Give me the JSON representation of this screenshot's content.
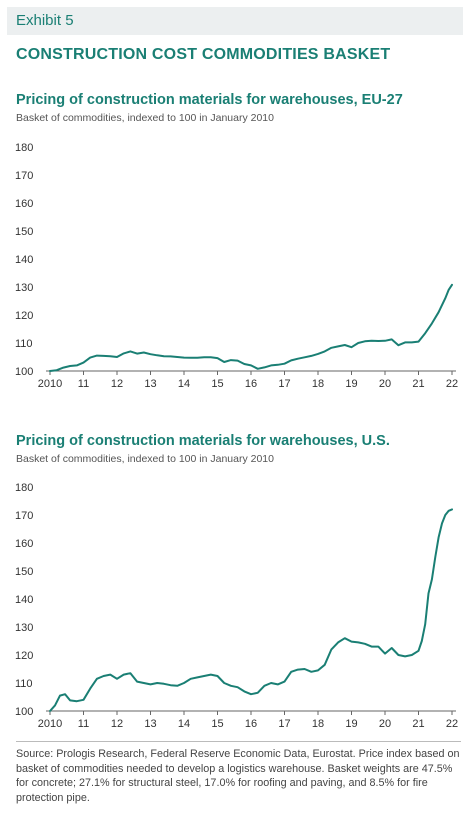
{
  "exhibit": "Exhibit 5",
  "main_title": "CONSTRUCTION COST COMMODITIES BASKET",
  "source_note": "Source: Prologis Research, Federal Reserve Economic Data, Eurostat. Price index based on basket of commodities needed to develop a logistics warehouse. Basket weights are 47.5% for concrete; 27.1% for structural steel, 17.0% for roofing and paving, and 8.5% for fire protection pipe.",
  "colors": {
    "line": "#1a7f74",
    "title": "#1a7f74"
  },
  "chart_data": [
    {
      "type": "line",
      "title": "Pricing of construction materials for warehouses, EU-27",
      "subtitle": "Basket of commodities, indexed to 100 in January 2010",
      "xlabel": "",
      "ylabel": "",
      "ylim": [
        100,
        180
      ],
      "yticks": [
        100,
        110,
        120,
        130,
        140,
        150,
        160,
        170,
        180
      ],
      "xlim": [
        2010,
        2022.0
      ],
      "xticks": [
        2010,
        2011,
        2012,
        2013,
        2014,
        2015,
        2016,
        2017,
        2018,
        2019,
        2020,
        2021,
        2022
      ],
      "xtick_labels": [
        "2010",
        "11",
        "12",
        "13",
        "14",
        "15",
        "16",
        "17",
        "18",
        "19",
        "20",
        "21",
        "22"
      ],
      "grid": false,
      "series": [
        {
          "x": [
            2010.0,
            2010.2,
            2010.4,
            2010.6,
            2010.8,
            2011.0,
            2011.2,
            2011.4,
            2011.6,
            2011.8,
            2012.0,
            2012.2,
            2012.4,
            2012.6,
            2012.8,
            2013.0,
            2013.2,
            2013.4,
            2013.6,
            2013.8,
            2014.0,
            2014.2,
            2014.4,
            2014.6,
            2014.8,
            2015.0,
            2015.2,
            2015.4,
            2015.6,
            2015.8,
            2016.0,
            2016.2,
            2016.4,
            2016.6,
            2016.8,
            2017.0,
            2017.2,
            2017.4,
            2017.6,
            2017.8,
            2018.0,
            2018.2,
            2018.4,
            2018.6,
            2018.8,
            2019.0,
            2019.2,
            2019.4,
            2019.6,
            2019.8,
            2020.0,
            2020.2,
            2020.4,
            2020.6,
            2020.8,
            2021.0,
            2021.2,
            2021.4,
            2021.6,
            2021.8,
            2021.9,
            2022.0
          ],
          "values": [
            100.0,
            100.3,
            101.2,
            101.8,
            102.0,
            103.0,
            104.8,
            105.5,
            105.4,
            105.3,
            105.0,
            106.3,
            107.0,
            106.2,
            106.6,
            106.0,
            105.6,
            105.3,
            105.2,
            105.0,
            104.8,
            104.7,
            104.7,
            104.9,
            104.9,
            104.6,
            103.2,
            103.9,
            103.7,
            102.5,
            102.0,
            100.8,
            101.3,
            102.0,
            102.2,
            102.6,
            103.8,
            104.4,
            104.9,
            105.4,
            106.1,
            107.0,
            108.3,
            108.8,
            109.3,
            108.5,
            110.0,
            110.6,
            110.8,
            110.7,
            110.8,
            111.3,
            109.2,
            110.2,
            110.2,
            110.5,
            113.5,
            117.0,
            121.0,
            126.0,
            129.0,
            130.8
          ]
        }
      ]
    },
    {
      "type": "line",
      "title": "Pricing of construction materials for warehouses, U.S.",
      "subtitle": "Basket of commodities, indexed to 100 in January 2010",
      "xlabel": "",
      "ylabel": "",
      "ylim": [
        100,
        180
      ],
      "yticks": [
        100,
        110,
        120,
        130,
        140,
        150,
        160,
        170,
        180
      ],
      "xlim": [
        2010,
        2022.0
      ],
      "xticks": [
        2010,
        2011,
        2012,
        2013,
        2014,
        2015,
        2016,
        2017,
        2018,
        2019,
        2020,
        2021,
        2022
      ],
      "xtick_labels": [
        "2010",
        "11",
        "12",
        "13",
        "14",
        "15",
        "16",
        "17",
        "18",
        "19",
        "20",
        "21",
        "22"
      ],
      "grid": false,
      "series": [
        {
          "x": [
            2010.0,
            2010.15,
            2010.3,
            2010.45,
            2010.6,
            2010.8,
            2011.0,
            2011.2,
            2011.4,
            2011.6,
            2011.8,
            2012.0,
            2012.2,
            2012.4,
            2012.6,
            2012.8,
            2013.0,
            2013.2,
            2013.4,
            2013.6,
            2013.8,
            2014.0,
            2014.2,
            2014.4,
            2014.6,
            2014.8,
            2015.0,
            2015.2,
            2015.4,
            2015.6,
            2015.8,
            2016.0,
            2016.2,
            2016.4,
            2016.6,
            2016.8,
            2017.0,
            2017.2,
            2017.4,
            2017.6,
            2017.8,
            2018.0,
            2018.2,
            2018.4,
            2018.6,
            2018.8,
            2019.0,
            2019.2,
            2019.4,
            2019.6,
            2019.8,
            2020.0,
            2020.2,
            2020.4,
            2020.6,
            2020.8,
            2021.0,
            2021.1,
            2021.2,
            2021.3,
            2021.4,
            2021.5,
            2021.6,
            2021.7,
            2021.8,
            2021.9,
            2022.0
          ],
          "values": [
            100.0,
            102.0,
            105.5,
            106.0,
            103.8,
            103.5,
            104.0,
            108.0,
            111.5,
            112.5,
            113.0,
            111.5,
            113.0,
            113.5,
            110.5,
            110.0,
            109.5,
            110.0,
            109.7,
            109.2,
            109.0,
            110.0,
            111.5,
            112.0,
            112.5,
            113.0,
            112.5,
            110.0,
            109.0,
            108.5,
            107.0,
            106.0,
            106.5,
            109.0,
            110.0,
            109.5,
            110.5,
            114.0,
            114.8,
            115.0,
            114.0,
            114.5,
            116.5,
            122.0,
            124.5,
            126.0,
            124.8,
            124.5,
            124.0,
            123.0,
            123.0,
            120.5,
            122.5,
            120.0,
            119.5,
            120.0,
            121.5,
            125.0,
            131.0,
            142.0,
            147.0,
            155.0,
            162.0,
            167.0,
            170.0,
            171.5,
            172.0
          ]
        }
      ]
    }
  ]
}
